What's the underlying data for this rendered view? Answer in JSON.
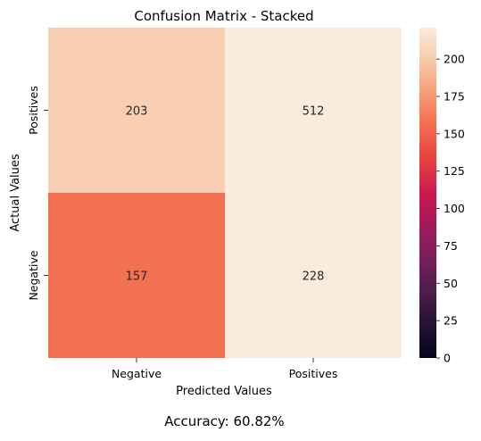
{
  "chart_data": {
    "type": "heatmap",
    "title": "Confusion Matrix - Stacked",
    "xlabel": "Predicted Values",
    "ylabel": "Actual Values",
    "x_categories": [
      "Negative",
      "Positives"
    ],
    "y_categories": [
      "Positives",
      "Negative"
    ],
    "cells": [
      {
        "row": "Positives",
        "col": "Negative",
        "value": 203,
        "label": "203"
      },
      {
        "row": "Positives",
        "col": "Positives",
        "value": 512,
        "label": "512"
      },
      {
        "row": "Negative",
        "col": "Negative",
        "value": 157,
        "label": "157"
      },
      {
        "row": "Negative",
        "col": "Positives",
        "value": 228,
        "label": "228"
      }
    ],
    "colorbar": {
      "vmin": 0,
      "vmax": 221,
      "ticks": [
        0,
        25,
        50,
        75,
        100,
        125,
        150,
        175,
        200
      ],
      "colormap": "rocket"
    }
  },
  "caption": "Accuracy: 60.82%",
  "colors": {
    "rocket_stops": [
      [
        0.0,
        "#03051a"
      ],
      [
        0.1,
        "#221331"
      ],
      [
        0.2,
        "#4c1d4b"
      ],
      [
        0.3,
        "#771e5a"
      ],
      [
        0.4,
        "#a11a5b"
      ],
      [
        0.5,
        "#cb1b4f"
      ],
      [
        0.6,
        "#e83f3f"
      ],
      [
        0.7,
        "#f26c4f"
      ],
      [
        0.8,
        "#f69c73"
      ],
      [
        0.9,
        "#f7c9aa"
      ],
      [
        1.0,
        "#faebdd"
      ]
    ]
  }
}
